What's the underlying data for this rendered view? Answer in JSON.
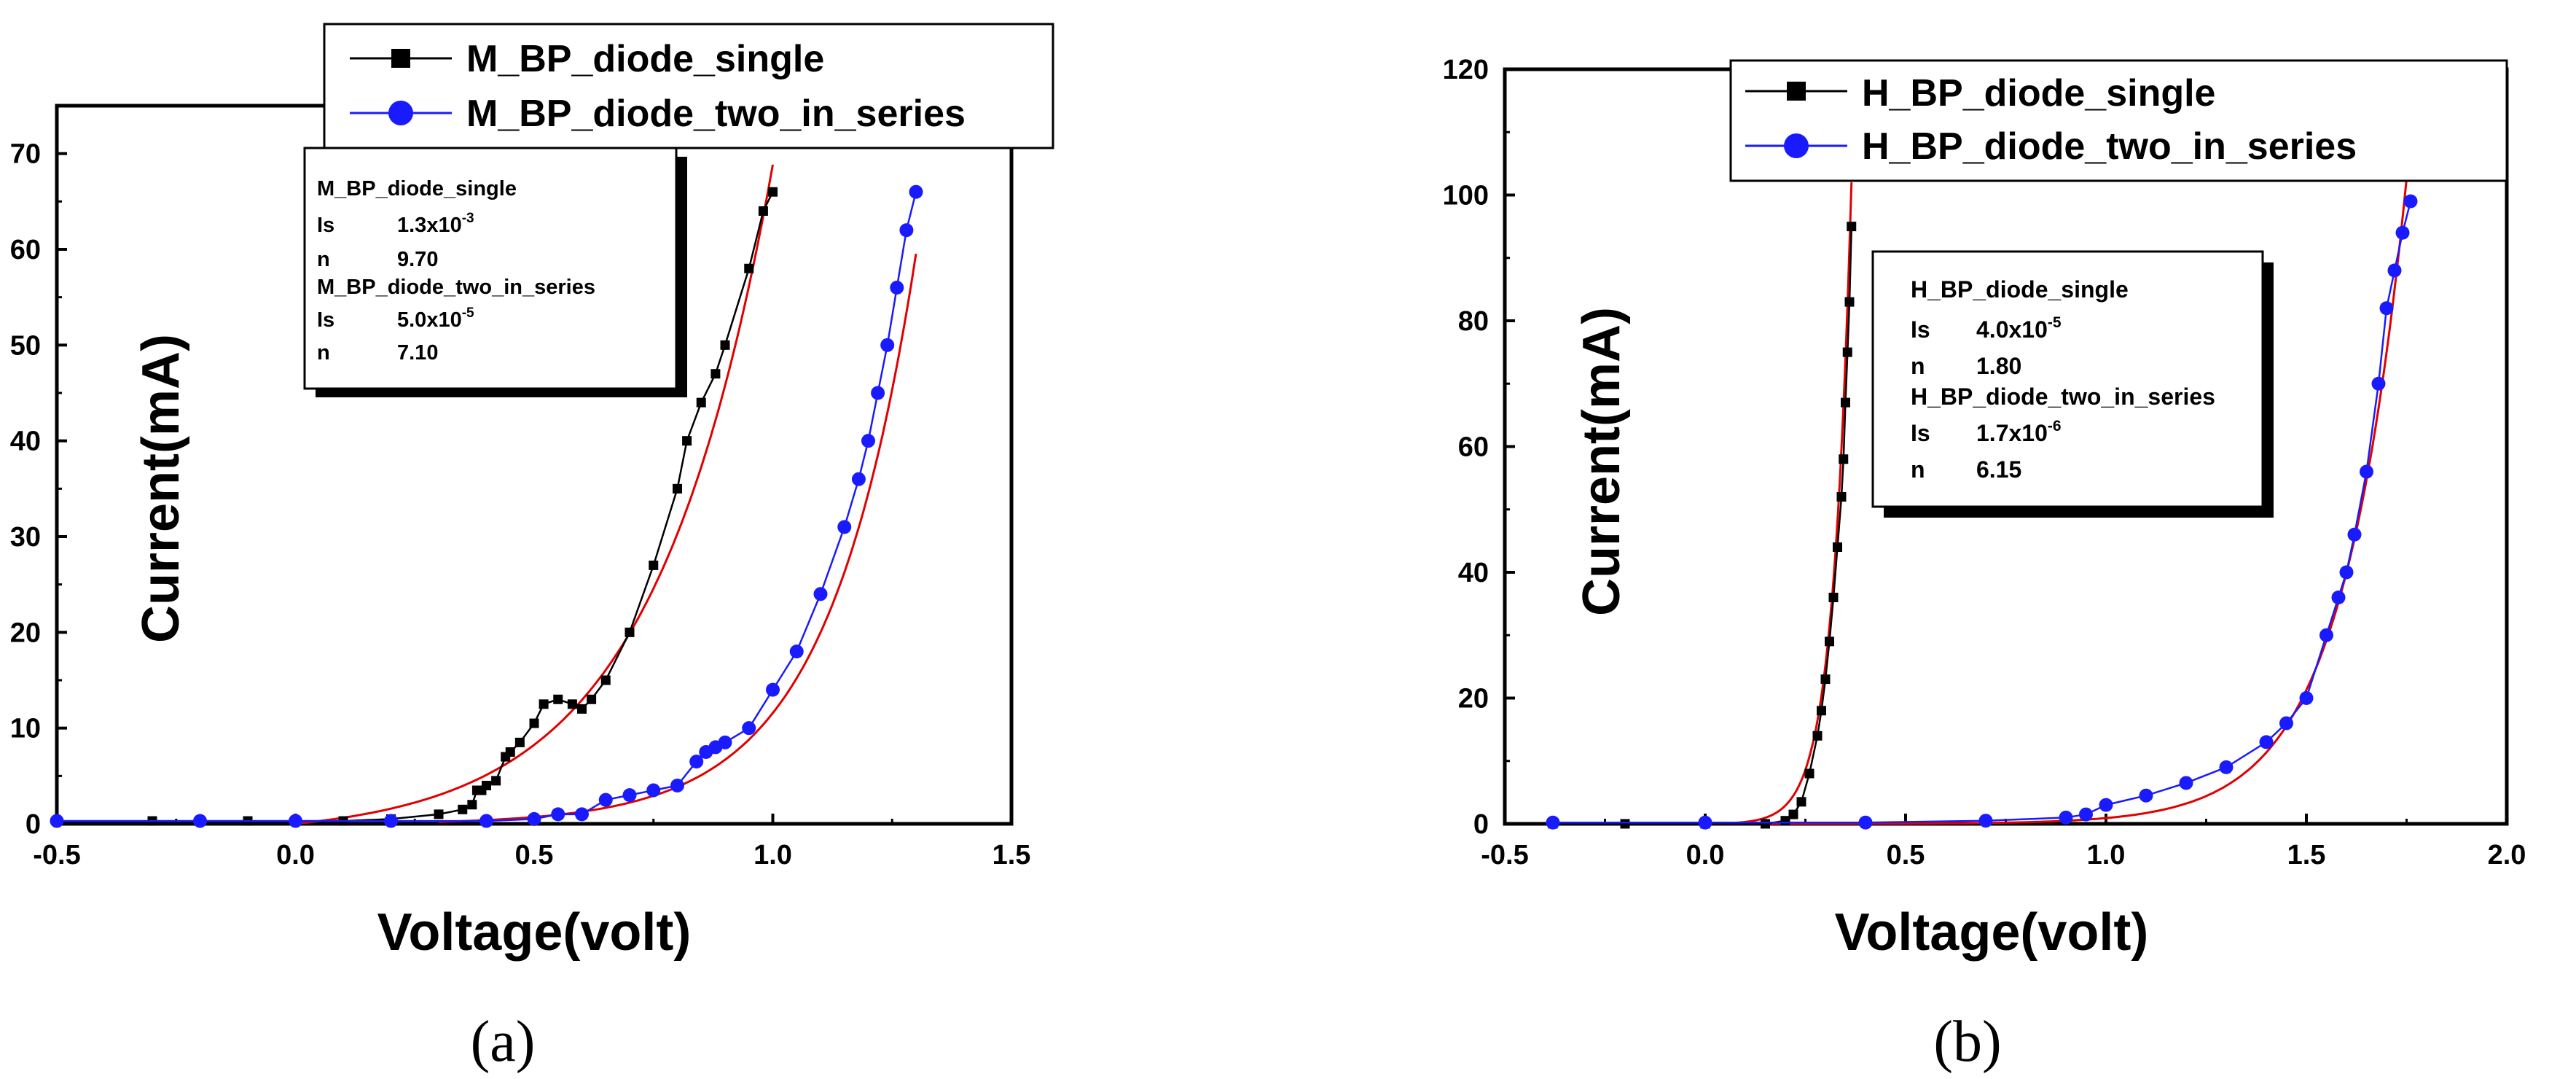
{
  "chart_data": [
    {
      "type": "scatter",
      "panel_label": "(a)",
      "xlabel": "Voltage(volt)",
      "ylabel": "Current(mA)",
      "xlim": [
        -0.5,
        1.5
      ],
      "ylim": [
        0,
        75
      ],
      "xticks": [
        -0.5,
        0.0,
        0.5,
        1.0,
        1.5
      ],
      "xtick_labels": [
        "-0.5",
        "0.0",
        "0.5",
        "1.0",
        "1.5"
      ],
      "yticks": [
        0,
        10,
        20,
        30,
        40,
        50,
        60,
        70
      ],
      "ytick_labels": [
        "0",
        "10",
        "20",
        "30",
        "40",
        "50",
        "60",
        "70"
      ],
      "legend": {
        "placement": "top",
        "entries": [
          {
            "label": "M_BP_diode_single",
            "color": "#000000",
            "marker": "square"
          },
          {
            "label": "M_BP_diode_two_in_series",
            "color": "#1a1aff",
            "marker": "circle"
          }
        ]
      },
      "fit_box": {
        "placement": "top-left",
        "lines": [
          {
            "name": "M_BP_diode_single"
          },
          {
            "param": "Is",
            "mantissa": "1.3x10",
            "exp": "-3"
          },
          {
            "param": "n",
            "value": "9.70"
          },
          {
            "name": "M_BP_diode_two_in_series"
          },
          {
            "param": "Is",
            "mantissa": "5.0x10",
            "exp": "-5"
          },
          {
            "param": "n",
            "value": "7.10"
          }
        ]
      },
      "series": [
        {
          "name": "M_BP_diode_single",
          "color": "#000000",
          "marker": "square",
          "x": [
            -0.5,
            -0.3,
            -0.1,
            0.0,
            0.1,
            0.2,
            0.3,
            0.35,
            0.37,
            0.38,
            0.39,
            0.4,
            0.42,
            0.44,
            0.45,
            0.47,
            0.5,
            0.52,
            0.55,
            0.58,
            0.6,
            0.62,
            0.65,
            0.7,
            0.75,
            0.8,
            0.82,
            0.85,
            0.88,
            0.9,
            0.95,
            0.98,
            1.0
          ],
          "y": [
            0.3,
            0.3,
            0.3,
            0.3,
            0.3,
            0.5,
            1.0,
            1.5,
            2.0,
            3.5,
            3.5,
            4.0,
            4.5,
            7.0,
            7.5,
            8.5,
            10.5,
            12.5,
            13.0,
            12.5,
            12.0,
            13.0,
            15.0,
            20.0,
            27.0,
            35.0,
            40.0,
            44.0,
            47.0,
            50.0,
            58.0,
            64.0,
            66.0
          ]
        },
        {
          "name": "M_BP_diode_two_in_series",
          "color": "#1a1aff",
          "marker": "circle",
          "x": [
            -0.5,
            -0.2,
            0.0,
            0.2,
            0.4,
            0.5,
            0.55,
            0.6,
            0.65,
            0.7,
            0.75,
            0.8,
            0.84,
            0.86,
            0.88,
            0.9,
            0.95,
            1.0,
            1.05,
            1.1,
            1.15,
            1.18,
            1.2,
            1.22,
            1.24,
            1.26,
            1.28,
            1.3
          ],
          "y": [
            0.3,
            0.3,
            0.3,
            0.3,
            0.3,
            0.5,
            1.0,
            1.0,
            2.5,
            3.0,
            3.5,
            4.0,
            6.5,
            7.5,
            8.0,
            8.5,
            10.0,
            14.0,
            18.0,
            24.0,
            31.0,
            36.0,
            40.0,
            45.0,
            50.0,
            56.0,
            62.0,
            66.0
          ]
        }
      ],
      "fits": [
        {
          "name": "fit_single",
          "color": "#e00000",
          "Is": 0.0013,
          "n": 9.7,
          "x_range": [
            0.0,
            1.0
          ]
        },
        {
          "name": "fit_two_in_series",
          "color": "#e00000",
          "Is": 5e-05,
          "n": 7.1,
          "x_range": [
            0.3,
            1.3
          ]
        }
      ]
    },
    {
      "type": "scatter",
      "panel_label": "(b)",
      "xlabel": "Voltage(volt)",
      "ylabel": "Current(mA)",
      "xlim": [
        -0.5,
        2.0
      ],
      "ylim": [
        0,
        120
      ],
      "xticks": [
        -0.5,
        0.0,
        0.5,
        1.0,
        1.5,
        2.0
      ],
      "xtick_labels": [
        "-0.5",
        "0.0",
        "0.5",
        "1.0",
        "1.5",
        "2.0"
      ],
      "yticks": [
        0,
        20,
        40,
        60,
        80,
        100,
        120
      ],
      "ytick_labels": [
        "0",
        "20",
        "40",
        "60",
        "80",
        "100",
        "120"
      ],
      "legend": {
        "placement": "top",
        "entries": [
          {
            "label": "H_BP_diode_single",
            "color": "#000000",
            "marker": "square"
          },
          {
            "label": "H_BP_diode_two_in_series",
            "color": "#1a1aff",
            "marker": "circle"
          }
        ]
      },
      "fit_box": {
        "placement": "center",
        "lines": [
          {
            "name": "H_BP_diode_single"
          },
          {
            "param": "Is",
            "mantissa": "4.0x10",
            "exp": "-5"
          },
          {
            "param": "n",
            "value": "1.80"
          },
          {
            "name": "H_BP_diode_two_in_series"
          },
          {
            "param": "Is",
            "mantissa": "1.7x10",
            "exp": "-6"
          },
          {
            "param": "n",
            "value": "6.15"
          }
        ]
      },
      "series": [
        {
          "name": "H_BP_diode_single",
          "color": "#000000",
          "marker": "square",
          "x": [
            -0.38,
            -0.2,
            0.0,
            0.15,
            0.2,
            0.22,
            0.24,
            0.26,
            0.28,
            0.29,
            0.3,
            0.31,
            0.32,
            0.33,
            0.34,
            0.345,
            0.35,
            0.355,
            0.36,
            0.365
          ],
          "y": [
            0.0,
            0.0,
            0.0,
            0.0,
            0.5,
            1.5,
            3.5,
            8.0,
            14.0,
            18.0,
            23.0,
            29.0,
            36.0,
            44.0,
            52.0,
            58.0,
            67.0,
            75.0,
            83.0,
            95.0
          ]
        },
        {
          "name": "H_BP_diode_two_in_series",
          "color": "#1a1aff",
          "marker": "circle",
          "x": [
            -0.38,
            0.0,
            0.4,
            0.7,
            0.9,
            0.95,
            1.0,
            1.1,
            1.2,
            1.3,
            1.4,
            1.45,
            1.5,
            1.55,
            1.58,
            1.6,
            1.62,
            1.65,
            1.68,
            1.7,
            1.72,
            1.74,
            1.76
          ],
          "y": [
            0.2,
            0.2,
            0.2,
            0.5,
            1.0,
            1.5,
            3.0,
            4.5,
            6.5,
            9.0,
            13.0,
            16.0,
            20.0,
            30.0,
            36.0,
            40.0,
            46.0,
            56.0,
            70.0,
            82.0,
            88.0,
            94.0,
            99.0
          ]
        }
      ],
      "fits": [
        {
          "name": "fit_single",
          "color": "#e00000",
          "Is": 4e-05,
          "n": 1.8,
          "x_range": [
            0.0,
            0.365
          ]
        },
        {
          "name": "fit_two_in_series",
          "color": "#e00000",
          "Is": 1.7e-06,
          "n": 6.15,
          "x_range": [
            0.0,
            1.76
          ]
        }
      ]
    }
  ]
}
